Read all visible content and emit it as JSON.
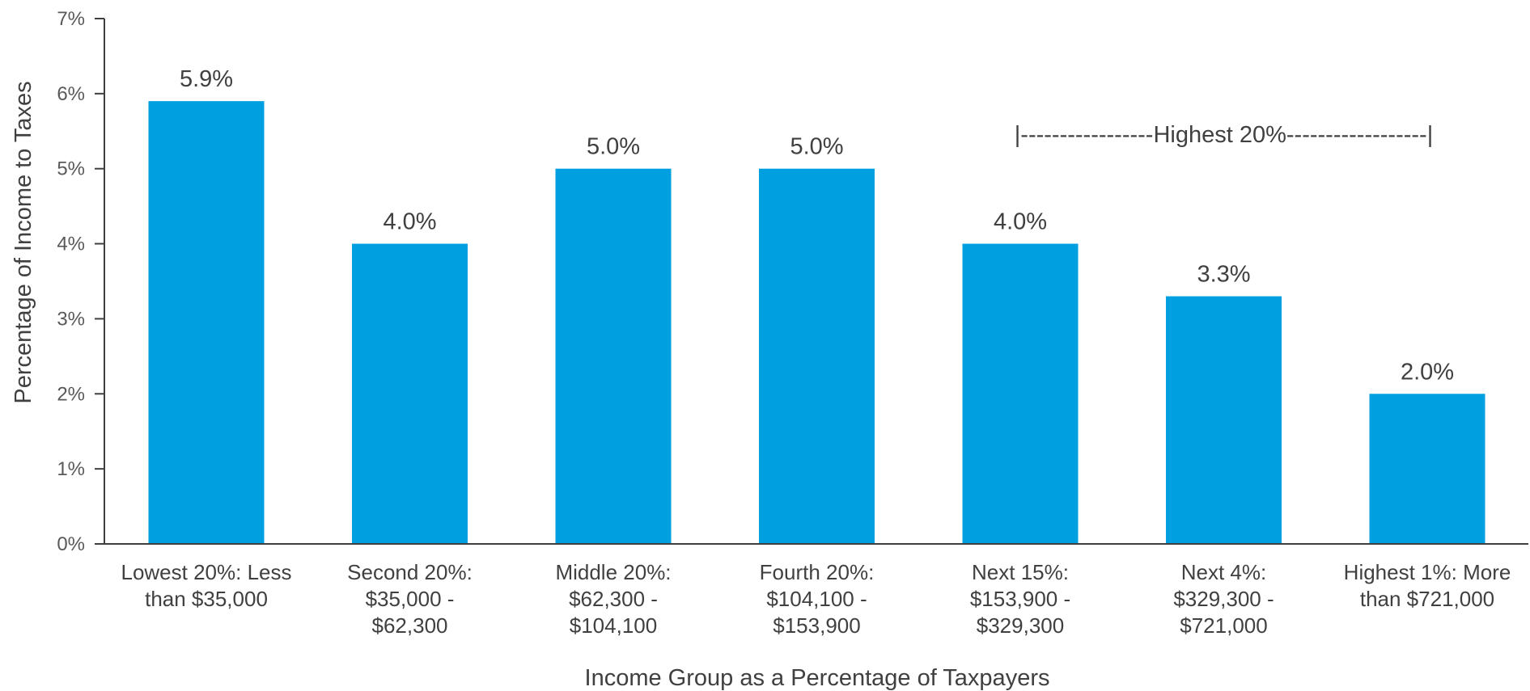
{
  "colors": {
    "bar": "#009fdf",
    "axis": "#404040"
  },
  "chart_data": {
    "type": "bar",
    "title": "",
    "xlabel": "Income Group as a Percentage of Taxpayers",
    "ylabel": "Percentage of Income to Taxes",
    "ylim": [
      0,
      7
    ],
    "yticks": [
      0,
      1,
      2,
      3,
      4,
      5,
      6,
      7
    ],
    "ytick_labels": [
      "0%",
      "1%",
      "2%",
      "3%",
      "4%",
      "5%",
      "6%",
      "7%"
    ],
    "grid": false,
    "legend": "none",
    "categories": [
      [
        "Lowest 20%: Less",
        "than $35,000"
      ],
      [
        "Second 20%:",
        "$35,000 -",
        "$62,300"
      ],
      [
        "Middle 20%:",
        "$62,300 -",
        "$104,100"
      ],
      [
        "Fourth 20%:",
        "$104,100 -",
        "$153,900"
      ],
      [
        "Next 15%:",
        "$153,900 -",
        "$329,300"
      ],
      [
        "Next 4%:",
        "$329,300 -",
        "$721,000"
      ],
      [
        "Highest 1%: More",
        "than $721,000"
      ]
    ],
    "values": [
      5.9,
      4.0,
      5.0,
      5.0,
      4.0,
      3.3,
      2.0
    ],
    "data_labels": [
      "5.9%",
      "4.0%",
      "5.0%",
      "5.0%",
      "4.0%",
      "3.3%",
      "2.0%"
    ],
    "annotation": {
      "text": "|-----------------Highest 20%------------------|",
      "from_category": 4,
      "to_category": 6
    }
  }
}
